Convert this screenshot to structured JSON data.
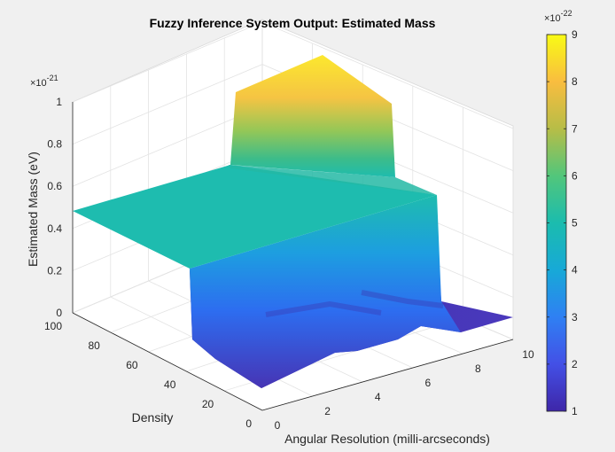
{
  "window": {
    "background": "#f0f0f0"
  },
  "chart_data": {
    "type": "surface",
    "title": "Fuzzy Inference System Output: Estimated Mass",
    "xlabel": "Angular Resolution (milli-arcseconds)",
    "ylabel": "Density",
    "zlabel": "Estimated Mass (eV)",
    "xlim": [
      0,
      10
    ],
    "ylim": [
      0,
      100
    ],
    "zlim": [
      0,
      1e-21
    ],
    "x_ticks": [
      "0",
      "2",
      "4",
      "6",
      "8",
      "10"
    ],
    "y_ticks": [
      "0",
      "20",
      "40",
      "60",
      "80",
      "100"
    ],
    "z_ticks": [
      "0",
      "0.2",
      "0.4",
      "0.6",
      "0.8",
      "1"
    ],
    "z_multiplier": "×10",
    "z_exponent": "-21",
    "grid": true,
    "colormap": "parula",
    "colorbar": {
      "location": "right",
      "range": [
        1e-22,
        9e-22
      ],
      "ticks": [
        "1",
        "2",
        "3",
        "4",
        "5",
        "6",
        "7",
        "8",
        "9"
      ],
      "multiplier": "×10",
      "exponent": "-22"
    },
    "surface_regions": [
      {
        "region": "high density plateau",
        "x_range": [
          0,
          10
        ],
        "y_range": [
          50,
          100
        ],
        "z": 5e-22
      },
      {
        "region": "peak",
        "x_range": [
          3,
          7
        ],
        "y_range": [
          45,
          55
        ],
        "z": 9e-22
      },
      {
        "region": "low density floor",
        "x_range": [
          0,
          10
        ],
        "y_range": [
          0,
          40
        ],
        "z": 1e-22
      }
    ]
  }
}
